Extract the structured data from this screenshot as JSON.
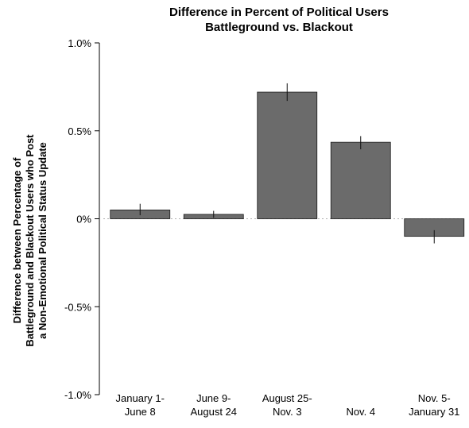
{
  "chart_data": {
    "type": "bar",
    "title": [
      "Difference in Percent of Political Users",
      "Battleground vs. Blackout"
    ],
    "ylabel": [
      "Difference between Percentage of",
      "Battleground and Blackout Users who Post",
      "a Non-Emotional Political Status Update"
    ],
    "xlabel": "",
    "categories": [
      [
        "January 1-",
        "June 8"
      ],
      [
        "June 9-",
        "August 24"
      ],
      [
        "August 25-",
        "Nov. 3"
      ],
      [
        "Nov. 4"
      ],
      [
        "Nov. 5-",
        "January 31"
      ]
    ],
    "values": [
      0.05,
      0.025,
      0.72,
      0.435,
      -0.1
    ],
    "error_low": [
      0.02,
      0.005,
      0.67,
      0.395,
      -0.14
    ],
    "error_high": [
      0.085,
      0.045,
      0.77,
      0.47,
      -0.065
    ],
    "ylim": [
      -1.0,
      1.0
    ],
    "yticks": [
      -1.0,
      -0.5,
      0,
      0.5,
      1.0
    ],
    "ytick_labels": [
      "-1.0%",
      "-0.5%",
      "0%",
      "0.5%",
      "1.0%"
    ],
    "bar_color": "#6b6b6b",
    "zero_line": "dotted",
    "grid": false,
    "legend": "none"
  }
}
